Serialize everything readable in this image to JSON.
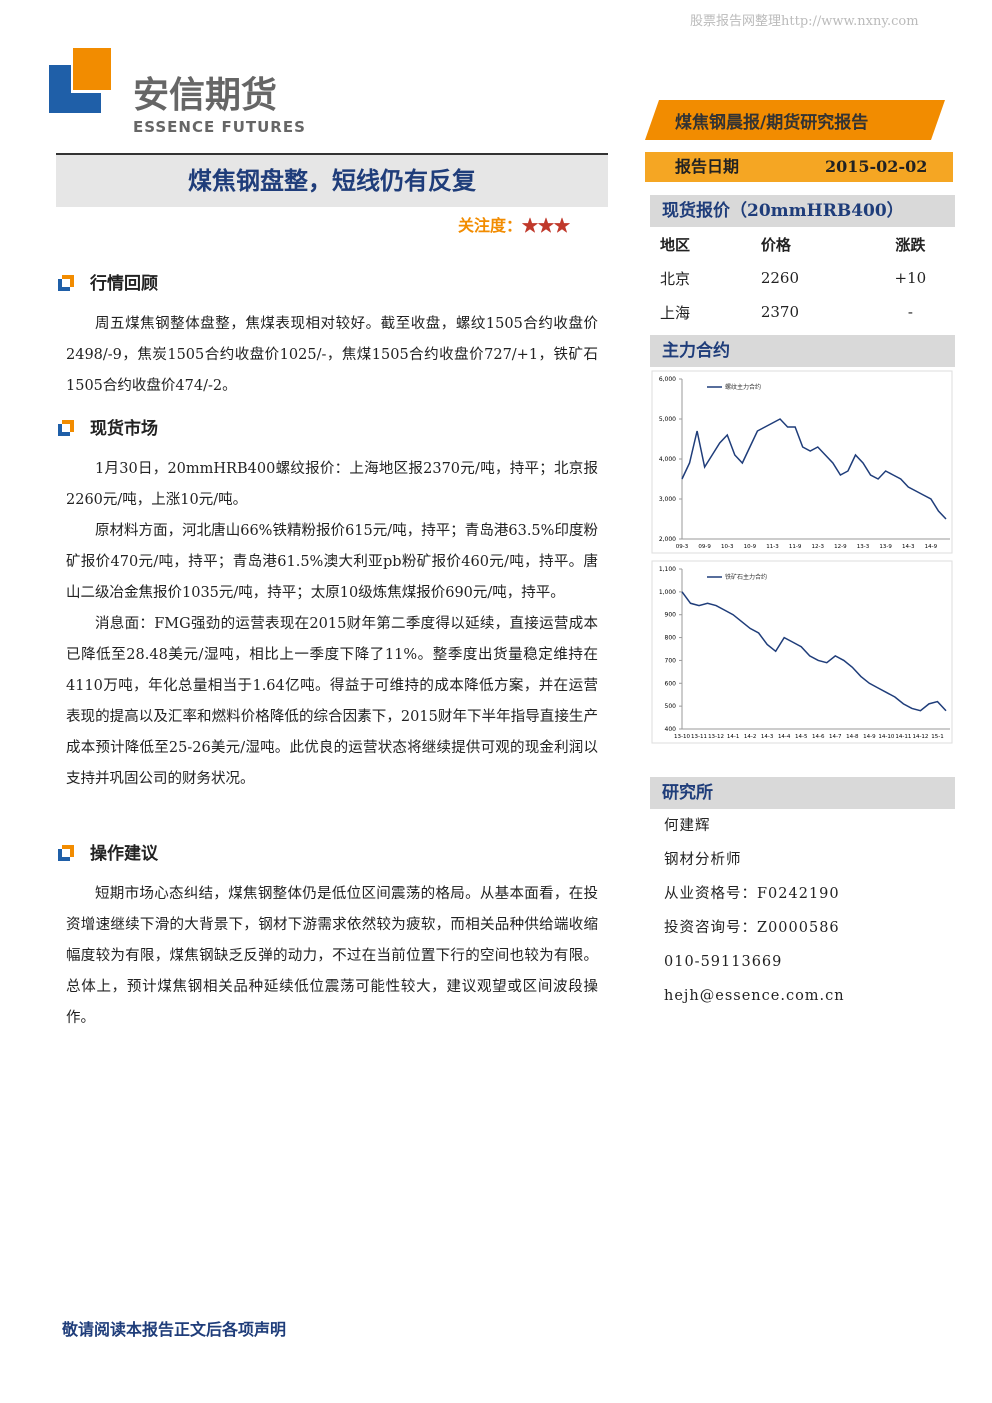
{
  "watermark": "股票报告网整理http://www.nxny.com",
  "logo": {
    "cn": "安信期货",
    "en": "ESSENCE FUTURES"
  },
  "banner": "煤焦钢晨报/期货研究报告",
  "report_date": {
    "label": "报告日期",
    "value": "2015-02-02"
  },
  "title": "煤焦钢盘整，短线仍有反复",
  "attention": {
    "label": "关注度：",
    "stars": "★★★"
  },
  "sections": [
    {
      "heading": "行情回顾",
      "paragraphs": [
        "周五煤焦钢整体盘整，焦煤表现相对较好。截至收盘，螺纹1505合约收盘价2498/-9，焦炭1505合约收盘价1025/-，焦煤1505合约收盘价727/+1，铁矿石1505合约收盘价474/-2。"
      ]
    },
    {
      "heading": "现货市场",
      "paragraphs": [
        "1月30日，20mmHRB400螺纹报价：上海地区报2370元/吨，持平；北京报2260元/吨，上涨10元/吨。",
        "原材料方面，河北唐山66%铁精粉报价615元/吨，持平；青岛港63.5%印度粉矿报价470元/吨，持平；青岛港61.5%澳大利亚pb粉矿报价460元/吨，持平。唐山二级冶金焦报价1035元/吨，持平；太原10级炼焦煤报价690元/吨，持平。",
        "消息面：FMG强劲的运营表现在2015财年第二季度得以延续，直接运营成本已降低至28.48美元/湿吨，相比上一季度下降了11%。整季度出货量稳定维持在4110万吨，年化总量相当于1.64亿吨。得益于可维持的成本降低方案，并在运营表现的提高以及汇率和燃料价格降低的综合因素下，2015财年下半年指导直接生产成本预计降低至25-26美元/湿吨。此优良的运营状态将继续提供可观的现金利润以支持并巩固公司的财务状况。"
      ]
    },
    {
      "heading": "操作建议",
      "paragraphs": [
        "短期市场心态纠结，煤焦钢整体仍是低位区间震荡的格局。从基本面看，在投资增速继续下滑的大背景下，钢材下游需求依然较为疲软，而相关品种供给端收缩幅度较为有限，煤焦钢缺乏反弹的动力，不过在当前位置下行的空间也较为有限。总体上，预计煤焦钢相关品种延续低位震荡可能性较大，建议观望或区间波段操作。"
      ]
    }
  ],
  "spot": {
    "heading": "现货报价（20mmHRB400）",
    "table": {
      "header": [
        "地区",
        "价格",
        "涨跌"
      ],
      "rows": [
        [
          "北京",
          "2260",
          "+10"
        ],
        [
          "上海",
          "2370",
          "-"
        ]
      ]
    }
  },
  "contracts_heading": "主力合约",
  "chart_data": [
    {
      "type": "line",
      "categories": [
        "09-3",
        null,
        null,
        "09-9",
        null,
        null,
        "10-3",
        null,
        null,
        "10-9",
        null,
        null,
        "11-3",
        null,
        null,
        "11-9",
        null,
        null,
        "12-3",
        null,
        null,
        "12-9",
        null,
        null,
        "13-3",
        null,
        null,
        "13-9",
        null,
        null,
        "14-3",
        null,
        null,
        "14-9",
        null,
        null
      ],
      "series": [
        {
          "name": "螺纹主力合约",
          "color": "#1f3d7a",
          "values": [
            3500,
            3900,
            4700,
            3800,
            4100,
            4400,
            4600,
            4100,
            3900,
            4300,
            4700,
            4800,
            4900,
            5000,
            4800,
            4800,
            4300,
            4200,
            4300,
            4100,
            3900,
            3600,
            3700,
            4100,
            3900,
            3600,
            3500,
            3700,
            3600,
            3500,
            3300,
            3200,
            3100,
            3000,
            2700,
            2500
          ]
        }
      ],
      "ylim": [
        2000,
        6000
      ],
      "yticks": [
        {
          "value": 2000,
          "label": "2,000"
        },
        {
          "value": 3000,
          "label": "3,000"
        },
        {
          "value": 4000,
          "label": "4,000"
        },
        {
          "value": 5000,
          "label": "5,000"
        },
        {
          "value": 6000,
          "label": "6,000"
        }
      ]
    },
    {
      "type": "line",
      "categories": [
        "13-10",
        null,
        "13-11",
        null,
        "13-12",
        null,
        "14-1",
        null,
        "14-2",
        null,
        "14-3",
        null,
        "14-4",
        null,
        "14-5",
        null,
        "14-6",
        null,
        "14-7",
        null,
        "14-8",
        null,
        "14-9",
        null,
        "14-10",
        null,
        "14-11",
        null,
        "14-12",
        null,
        "15-1",
        null
      ],
      "series": [
        {
          "name": "铁矿石主力合约",
          "color": "#1f3d7a",
          "values": [
            1000,
            950,
            940,
            950,
            940,
            920,
            900,
            870,
            840,
            820,
            770,
            740,
            800,
            780,
            760,
            720,
            700,
            690,
            720,
            700,
            670,
            630,
            600,
            580,
            560,
            540,
            510,
            490,
            480,
            510,
            520,
            480
          ]
        }
      ],
      "ylim": [
        400,
        1100
      ],
      "yticks": [
        400,
        500,
        600,
        700,
        800,
        900,
        {
          "value": 1000,
          "label": "1,000"
        },
        {
          "value": 1100,
          "label": "1,100"
        }
      ]
    }
  ],
  "research": {
    "heading": "研究所",
    "lines": [
      "何建辉",
      "钢材分析师",
      "从业资格号：F0242190",
      "投资咨询号：Z0000586",
      "010-59113669",
      "hejh@essence.com.cn"
    ]
  },
  "footer": "敬请阅读本报告正文后各项声明"
}
